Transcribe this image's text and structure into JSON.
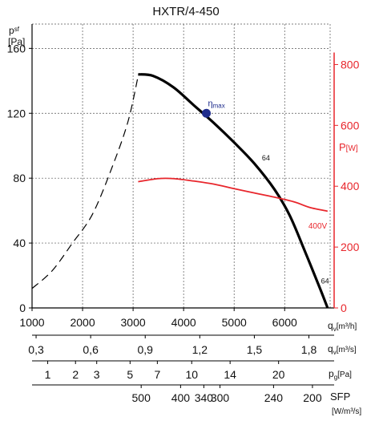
{
  "chart_data": {
    "type": "line",
    "title": "HXTR/4-450",
    "y_axis": {
      "label_main": "p",
      "label_sub": "sf",
      "unit": "[Pa]",
      "range": [
        0,
        175
      ],
      "ticks": [
        0,
        40,
        80,
        120,
        160
      ]
    },
    "y2_axis": {
      "label_main": "P",
      "label_unit": "[W]",
      "range": [
        0,
        933
      ],
      "ticks": [
        0,
        200,
        400,
        600,
        800
      ],
      "color": "#e8262c"
    },
    "x_axis": {
      "label_main": "q",
      "label_sub": "v",
      "label_unit": "[m³/h]",
      "range": [
        1000,
        6900
      ],
      "ticks": [
        1000,
        2000,
        3000,
        4000,
        5000,
        6000
      ]
    },
    "x_axis_2": {
      "label_main": "q",
      "label_sub": "v",
      "label_unit": "[m³/s]",
      "ticks": [
        {
          "label": "0,3",
          "q": 1080
        },
        {
          "label": "0,6",
          "q": 2160
        },
        {
          "label": "0,9",
          "q": 3240
        },
        {
          "label": "1,2",
          "q": 4320
        },
        {
          "label": "1,5",
          "q": 5400
        },
        {
          "label": "1,8",
          "q": 6480
        }
      ]
    },
    "x_axis_3": {
      "label_main": "p",
      "label_sub": "g",
      "label_unit": "[Pa]",
      "ticks": [
        {
          "label": "1",
          "q": 1310
        },
        {
          "label": "2",
          "q": 1860
        },
        {
          "label": "3",
          "q": 2280
        },
        {
          "label": "5",
          "q": 2940
        },
        {
          "label": "7",
          "q": 3480
        },
        {
          "label": "10",
          "q": 4160
        },
        {
          "label": "14",
          "q": 4920
        },
        {
          "label": "20",
          "q": 5880
        }
      ]
    },
    "x_axis_4": {
      "label_main": "SFP",
      "label_unit": "[W/m³/s]",
      "ticks": [
        {
          "label": "500",
          "q": 3160
        },
        {
          "label": "400",
          "q": 3940
        },
        {
          "label": "340",
          "q": 4400
        },
        {
          "label": "300",
          "q": 4720
        },
        {
          "label": "240",
          "q": 5780
        },
        {
          "label": "200",
          "q": 6550
        }
      ]
    },
    "series": [
      {
        "kind": "pressure-dashed",
        "color": "#000000",
        "points": [
          [
            1000,
            12
          ],
          [
            1400,
            23
          ],
          [
            1800,
            40
          ],
          [
            2200,
            58
          ],
          [
            2600,
            88
          ],
          [
            2900,
            115
          ],
          [
            3100,
            143
          ]
        ]
      },
      {
        "kind": "pressure-solid",
        "color": "#000000",
        "points": [
          [
            3100,
            144
          ],
          [
            3400,
            143
          ],
          [
            3800,
            136
          ],
          [
            4200,
            125
          ],
          [
            4600,
            114
          ],
          [
            5000,
            102
          ],
          [
            5400,
            89
          ],
          [
            5800,
            73
          ],
          [
            6100,
            57
          ],
          [
            6400,
            35
          ],
          [
            6700,
            12
          ],
          [
            6850,
            0
          ]
        ]
      },
      {
        "kind": "power",
        "color": "#e8262c",
        "points": [
          [
            3100,
            415
          ],
          [
            3500,
            425
          ],
          [
            3800,
            425
          ],
          [
            4200,
            417
          ],
          [
            4600,
            407
          ],
          [
            5000,
            392
          ],
          [
            5400,
            378
          ],
          [
            5800,
            364
          ],
          [
            6200,
            348
          ],
          [
            6500,
            330
          ],
          [
            6850,
            318
          ]
        ]
      }
    ],
    "annotations": [
      {
        "text": "64",
        "q": 5550,
        "p": 91
      },
      {
        "text": "400V",
        "q": 6470,
        "p": 49
      },
      {
        "text": "64",
        "q": 6720,
        "p": 15
      }
    ],
    "eta_max": {
      "label_main": "η",
      "label_sub": "max",
      "q": 4450,
      "p": 120,
      "color": "#1e2c8c"
    }
  }
}
